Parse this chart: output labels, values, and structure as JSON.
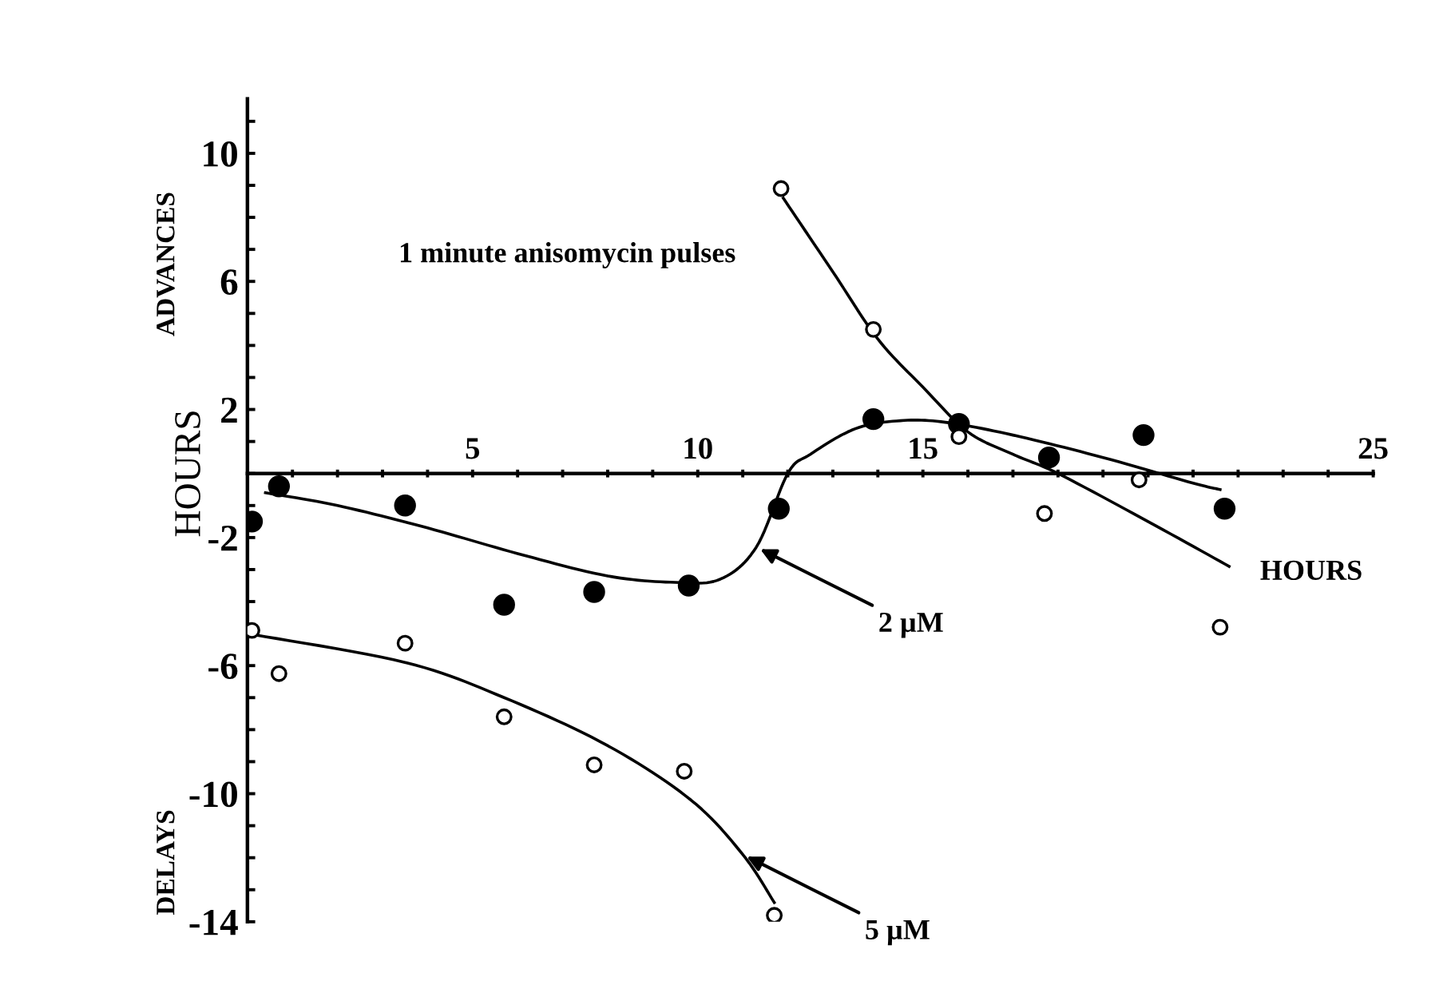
{
  "chart_data": {
    "type": "scatter",
    "xlabel": "HOURS",
    "ylabel": "HOURS",
    "xlim": [
      0,
      25
    ],
    "ylim": [
      -14,
      11.7
    ],
    "xticks": [
      {
        "value": 1,
        "label": null
      },
      {
        "value": 2,
        "label": null
      },
      {
        "value": 3,
        "label": null
      },
      {
        "value": 4,
        "label": null
      },
      5,
      {
        "value": 6,
        "label": null
      },
      {
        "value": 7,
        "label": null
      },
      {
        "value": 8,
        "label": null
      },
      {
        "value": 9,
        "label": null
      },
      10,
      {
        "value": 11,
        "label": null
      },
      {
        "value": 12,
        "label": null
      },
      {
        "value": 13,
        "label": null
      },
      {
        "value": 14,
        "label": null
      },
      15,
      {
        "value": 16,
        "label": null
      },
      {
        "value": 17,
        "label": null
      },
      {
        "value": 18,
        "label": null
      },
      {
        "value": 19,
        "label": null
      },
      {
        "value": 20,
        "label": null
      },
      {
        "value": 21,
        "label": null
      },
      {
        "value": 22,
        "label": null
      },
      {
        "value": 23,
        "label": null
      },
      {
        "value": 24,
        "label": null
      },
      25
    ],
    "yticks": [
      -14,
      {
        "value": -13,
        "label": null
      },
      {
        "value": -12,
        "label": null
      },
      {
        "value": -11,
        "label": null
      },
      -10,
      {
        "value": -9,
        "label": null
      },
      {
        "value": -8,
        "label": null
      },
      {
        "value": -7,
        "label": null
      },
      -6,
      {
        "value": -5,
        "label": null
      },
      {
        "value": -4,
        "label": null
      },
      {
        "value": -3,
        "label": null
      },
      -2,
      {
        "value": -1,
        "label": null
      },
      {
        "value": 0,
        "label": null
      },
      {
        "value": 1,
        "label": null
      },
      2,
      {
        "value": 3,
        "label": null
      },
      {
        "value": 4,
        "label": null
      },
      {
        "value": 5,
        "label": null
      },
      6,
      {
        "value": 7,
        "label": null
      },
      {
        "value": 8,
        "label": null
      },
      {
        "value": 9,
        "label": null
      },
      10,
      {
        "value": 11,
        "label": null
      }
    ],
    "grid": false,
    "legend": false,
    "marker": "circle",
    "series": [
      {
        "type": "line",
        "marker": "none",
        "color": "#000000",
        "x": [
          0.4,
          2,
          4,
          6,
          8,
          9.5,
          10.5,
          11.3,
          12,
          12.5,
          13.5,
          14.5,
          15.5,
          17,
          19,
          21,
          21.6
        ],
        "values": [
          -0.6,
          -1.0,
          -1.7,
          -2.5,
          -3.2,
          -3.4,
          -3.3,
          -2.3,
          0,
          0.6,
          1.4,
          1.65,
          1.6,
          1.2,
          0.5,
          -0.3,
          -0.5
        ]
      },
      {
        "type": "line",
        "marker": "none",
        "color": "#000000",
        "x": [
          0,
          3.5,
          5.7,
          8,
          9.85,
          11,
          11.7
        ],
        "values": [
          -5.0,
          -5.9,
          -7.0,
          -8.5,
          -10.2,
          -11.9,
          -13.4
        ]
      },
      {
        "type": "line",
        "marker": "none",
        "color": "#000000",
        "x": [
          11.9,
          13,
          14,
          15,
          16,
          17,
          18,
          20,
          21.8
        ],
        "values": [
          8.6,
          6.3,
          4.2,
          2.7,
          1.3,
          0.6,
          0,
          -1.5,
          -2.9
        ]
      },
      {
        "color": "#000000",
        "x": [
          0.1,
          0.7,
          3.5,
          5.7,
          7.7,
          9.8,
          11.8,
          13.9,
          15.8,
          17.8,
          19.9,
          21.7
        ],
        "values": [
          -1.5,
          -0.4,
          -1.0,
          -4.1,
          -3.7,
          -3.5,
          -1.1,
          1.7,
          1.55,
          0.5,
          1.2,
          -1.1
        ]
      },
      {
        "color": "#ffffff",
        "x": [
          0.1,
          0.7,
          3.5,
          5.7,
          7.7,
          9.7,
          11.7,
          11.85,
          13.9,
          15.8,
          17.7,
          19.8,
          21.6
        ],
        "values": [
          -4.9,
          -6.25,
          -5.3,
          -7.6,
          -9.1,
          -9.3,
          -13.8,
          8.9,
          4.5,
          1.15,
          -1.25,
          -0.2,
          -4.8
        ]
      }
    ],
    "annotations": [
      "1 minute anisomycin pulses",
      "ADVANCES",
      "DELAYS",
      {
        "text": "2 µM",
        "x": 11.3,
        "y": -2.3
      },
      {
        "text": "5 µM",
        "x": 11,
        "y": -11.9
      }
    ]
  }
}
